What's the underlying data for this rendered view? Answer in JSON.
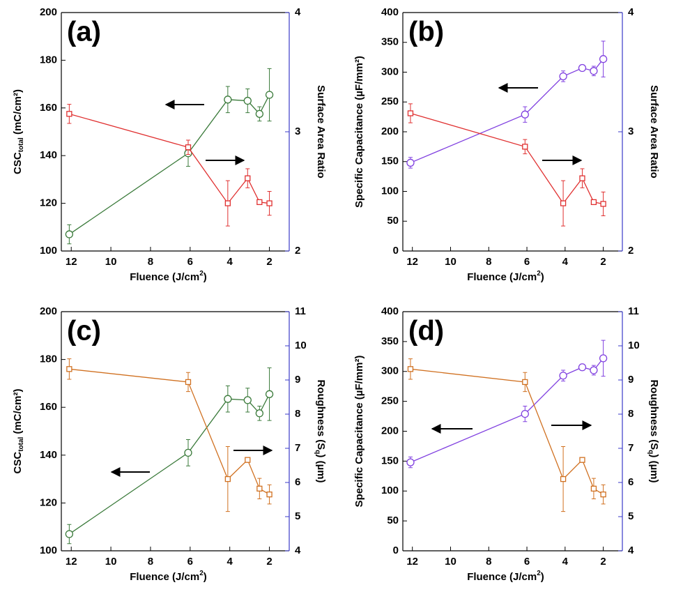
{
  "chart_data": [
    {
      "type": "line",
      "title": "(a)",
      "xlabel": [
        "Fluence (J/cm",
        "2",
        ")"
      ],
      "ylabel": [
        "CSC",
        "total",
        " (mC/cm²)"
      ],
      "y2label": [
        "Surface Area Ratio"
      ],
      "x": [
        12.1,
        6.1,
        4.1,
        3.1,
        2.5,
        2.0
      ],
      "xlim": [
        12.5,
        1
      ],
      "xticks": [
        12,
        10,
        8,
        6,
        4,
        2
      ],
      "ylim": [
        100,
        200
      ],
      "yticks": [
        100,
        120,
        140,
        160,
        180,
        200
      ],
      "y2lim": [
        2,
        4
      ],
      "y2ticks": [
        2,
        3,
        4
      ],
      "series": [
        {
          "color": "#3a7a3a",
          "marker": "circle",
          "values": [
            107,
            141,
            163.5,
            163,
            157.5,
            165.5
          ],
          "errors": [
            4,
            5.5,
            5.5,
            5,
            3,
            11
          ]
        },
        {
          "color": "#e03030",
          "marker": "square",
          "axis": "y2",
          "values": [
            3.15,
            2.87,
            2.4,
            2.61,
            2.41,
            2.4
          ],
          "errors": [
            0.08,
            0.06,
            0.19,
            0.08,
            0.01,
            0.1
          ]
        }
      ]
    },
    {
      "type": "line",
      "title": "(b)",
      "xlabel": [
        "Fluence (J/cm",
        "2",
        ")"
      ],
      "ylabel": [
        "Specific Capacitance (µF/mm²)"
      ],
      "y2label": [
        "Surface Area Ratio"
      ],
      "x": [
        12.1,
        6.1,
        4.1,
        3.1,
        2.5,
        2.0
      ],
      "xlim": [
        12.5,
        1
      ],
      "xticks": [
        12,
        10,
        8,
        6,
        4,
        2
      ],
      "ylim": [
        0,
        400
      ],
      "yticks": [
        0,
        50,
        100,
        150,
        200,
        250,
        300,
        350,
        400
      ],
      "y2lim": [
        2,
        4
      ],
      "y2ticks": [
        2,
        3,
        4
      ],
      "series": [
        {
          "color": "#8040e0",
          "marker": "circle",
          "values": [
            148,
            229,
            293,
            307,
            302,
            322
          ],
          "errors": [
            9,
            13,
            9,
            5,
            8,
            30
          ]
        },
        {
          "color": "#e03030",
          "marker": "square",
          "axis": "y2",
          "values": [
            3.155,
            2.875,
            2.4,
            2.61,
            2.41,
            2.395
          ],
          "errors": [
            0.08,
            0.06,
            0.19,
            0.08,
            0.01,
            0.1
          ]
        }
      ]
    },
    {
      "type": "line",
      "title": "(c)",
      "xlabel": [
        "Fluence (J/cm",
        "2",
        ")"
      ],
      "ylabel": [
        "CSC",
        "total",
        " (mC/cm²)"
      ],
      "y2label": [
        "Roughness (S",
        "q",
        ") (µm)"
      ],
      "x": [
        12.1,
        6.1,
        4.1,
        3.1,
        2.5,
        2.0
      ],
      "xlim": [
        12.5,
        1
      ],
      "xticks": [
        12,
        10,
        8,
        6,
        4,
        2
      ],
      "ylim": [
        100,
        200
      ],
      "yticks": [
        100,
        120,
        140,
        160,
        180,
        200
      ],
      "y2lim": [
        4,
        11
      ],
      "y2ticks": [
        4,
        5,
        6,
        7,
        8,
        9,
        10,
        11
      ],
      "series": [
        {
          "color": "#3a7a3a",
          "marker": "circle",
          "values": [
            107,
            141,
            163.5,
            163,
            157.5,
            165.5
          ],
          "errors": [
            4,
            5.5,
            5.5,
            5,
            3,
            11
          ]
        },
        {
          "color": "#d07020",
          "marker": "square",
          "axis": "y2",
          "values": [
            9.32,
            8.94,
            6.1,
            6.66,
            5.82,
            5.65
          ],
          "errors": [
            0.3,
            0.28,
            0.95,
            0.07,
            0.3,
            0.28
          ]
        }
      ]
    },
    {
      "type": "line",
      "title": "(d)",
      "xlabel": [
        "Fluence (J/cm",
        "2",
        ")"
      ],
      "ylabel": [
        "Specific Capacitance (µF/mm²)"
      ],
      "y2label": [
        "Roughness (S",
        "q",
        ") (µm)"
      ],
      "x": [
        12.1,
        6.1,
        4.1,
        3.1,
        2.5,
        2.0
      ],
      "xlim": [
        12.5,
        1
      ],
      "xticks": [
        12,
        10,
        8,
        6,
        4,
        2
      ],
      "ylim": [
        0,
        400
      ],
      "yticks": [
        0,
        50,
        100,
        150,
        200,
        250,
        300,
        350,
        400
      ],
      "y2lim": [
        4,
        11
      ],
      "y2ticks": [
        4,
        5,
        6,
        7,
        8,
        9,
        10,
        11
      ],
      "series": [
        {
          "color": "#8040e0",
          "marker": "circle",
          "values": [
            148,
            229,
            293,
            307,
            302,
            322
          ],
          "errors": [
            9,
            13,
            9,
            5,
            8,
            30
          ]
        },
        {
          "color": "#d07020",
          "marker": "square",
          "axis": "y2",
          "values": [
            9.32,
            8.94,
            6.1,
            6.66,
            5.82,
            5.65
          ],
          "errors": [
            0.3,
            0.28,
            0.95,
            0.07,
            0.3,
            0.28
          ]
        }
      ]
    }
  ]
}
